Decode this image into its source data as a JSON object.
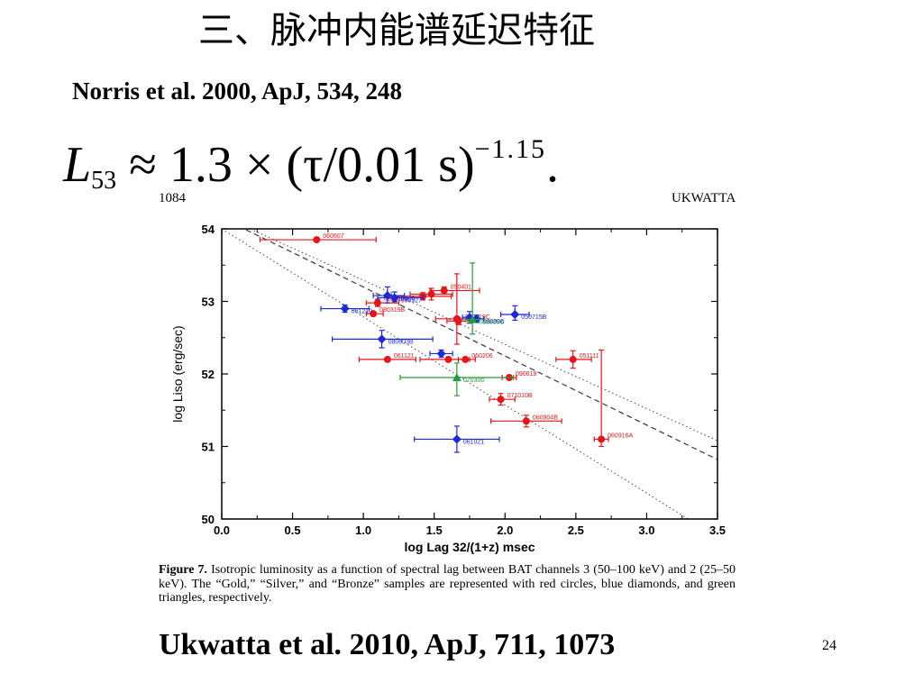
{
  "slide": {
    "title": "三、脉冲内能谱延迟特征",
    "reference_top": "Norris et al. 2000, ApJ, 534, 248",
    "formula": {
      "lhs": "L",
      "lhs_sub": "53",
      "rhs": "≈ 1.3 × (τ/0.01  s)",
      "exponent": "−1.15",
      "end": "."
    },
    "journal_page": "1084",
    "journal_author": "UKWATTA",
    "caption": {
      "label": "Figure 7.",
      "text": "Isotropic luminosity as a function of spectral lag between BAT channels 3 (50–100 keV) and 2 (25–50 keV). The “Gold,” “Silver,” and “Bronze” samples are represented with red circles, blue diamonds, and green triangles, respectively."
    },
    "reference_bottom": "Ukwatta et al. 2010, ApJ, 711, 1073",
    "page_number": "24"
  },
  "colors": {
    "gold": "#e8141a",
    "silver": "#1a2ad6",
    "bronze": "#2a9a3a",
    "axis": "#000000",
    "fit": "#444444"
  },
  "chart_data": {
    "type": "scatter",
    "xlabel": "log Lag 32/(1+z)  msec",
    "ylabel": "log Liso (erg/sec)",
    "xlim": [
      0.0,
      3.5
    ],
    "ylim": [
      50,
      54
    ],
    "xticks": [
      "0.0",
      "0.5",
      "1.0",
      "1.5",
      "2.0",
      "2.5",
      "3.0",
      "3.5"
    ],
    "yticks": [
      "50",
      "51",
      "52",
      "53",
      "54"
    ],
    "grid": false,
    "lines": [
      {
        "style": "dashed",
        "x": [
          0.0,
          3.5
        ],
        "y": [
          54.15,
          50.82
        ]
      },
      {
        "style": "dotted",
        "x": [
          0.0,
          3.5
        ],
        "y": [
          54.0,
          49.75
        ]
      },
      {
        "style": "dotted",
        "x": [
          0.2,
          3.5
        ],
        "y": [
          54.0,
          51.08
        ]
      }
    ],
    "series": [
      {
        "sample": "gold",
        "marker": "circle",
        "points": [
          {
            "label": "060607",
            "x": 0.67,
            "y": 53.85,
            "xerr": [
              0.4,
              0.42
            ],
            "yerr": [
              0,
              0
            ]
          },
          {
            "label": "080319B",
            "x": 1.1,
            "y": 52.98,
            "xerr": [
              0.08,
              0.15
            ],
            "yerr": [
              0.05,
              0.05
            ]
          },
          {
            "label": "080319B",
            "x": 1.07,
            "y": 52.83,
            "xerr": [
              0.05,
              0.07
            ],
            "yerr": [
              0.03,
              0.03
            ]
          },
          {
            "label": "",
            "x": 1.42,
            "y": 53.07,
            "xerr": [
              0.22,
              0.2
            ],
            "yerr": [
              0.05,
              0.05
            ]
          },
          {
            "label": "",
            "x": 1.48,
            "y": 53.1,
            "xerr": [
              0.15,
              0.15
            ],
            "yerr": [
              0.08,
              0.08
            ]
          },
          {
            "label": "050401",
            "x": 1.57,
            "y": 53.15,
            "xerr": [
              0.1,
              0.25
            ],
            "yerr": [
              0.05,
              0.05
            ]
          },
          {
            "label": "",
            "x": 1.66,
            "y": 52.76,
            "xerr": [
              0.15,
              0.15
            ],
            "yerr": [
              0.35,
              0.62
            ]
          },
          {
            "label": "080319C",
            "x": 1.67,
            "y": 52.73,
            "xerr": [
              0.08,
              0.08
            ],
            "yerr": [
              0.05,
              0.05
            ]
          },
          {
            "label": "061121",
            "x": 1.17,
            "y": 52.2,
            "xerr": [
              0.2,
              0.2
            ],
            "yerr": [
              0,
              0
            ]
          },
          {
            "label": "",
            "x": 1.6,
            "y": 52.2,
            "xerr": [
              0.2,
              0.15
            ],
            "yerr": [
              0.03,
              0.03
            ]
          },
          {
            "label": "060206",
            "x": 1.72,
            "y": 52.2,
            "xerr": [
              0.05,
              0.07
            ],
            "yerr": [
              0,
              0
            ]
          },
          {
            "label": "090618",
            "x": 2.03,
            "y": 51.95,
            "xerr": [
              0.05,
              0.05
            ],
            "yerr": [
              0.03,
              0.03
            ]
          },
          {
            "label": "071010B",
            "x": 1.97,
            "y": 51.65,
            "xerr": [
              0.08,
              0.1
            ],
            "yerr": [
              0.08,
              0.08
            ]
          },
          {
            "label": "060904B",
            "x": 2.15,
            "y": 51.35,
            "xerr": [
              0.25,
              0.25
            ],
            "yerr": [
              0.08,
              0.08
            ]
          },
          {
            "label": "051111",
            "x": 2.48,
            "y": 52.2,
            "xerr": [
              0.12,
              0.13
            ],
            "yerr": [
              0.12,
              0.12
            ]
          },
          {
            "label": "060916A",
            "x": 2.68,
            "y": 51.1,
            "xerr": [
              0.05,
              0.05
            ],
            "yerr": [
              0.1,
              1.23
            ]
          }
        ]
      },
      {
        "sample": "silver",
        "marker": "diamond",
        "points": [
          {
            "label": "060926",
            "x": 1.17,
            "y": 53.08,
            "xerr": [
              0.1,
              0.12
            ],
            "yerr": [
              0.1,
              0.12
            ]
          },
          {
            "label": "080927",
            "x": 1.22,
            "y": 53.05,
            "xerr": [
              0.12,
              0.2
            ],
            "yerr": [
              0.05,
              0.08
            ]
          },
          {
            "label": "061210",
            "x": 0.87,
            "y": 52.9,
            "xerr": [
              0.17,
              0.17
            ],
            "yerr": [
              0.05,
              0.05
            ]
          },
          {
            "label": "080603B",
            "x": 1.13,
            "y": 52.48,
            "xerr": [
              0.35,
              0.36
            ],
            "yerr": [
              0.12,
              0.12
            ]
          },
          {
            "label": "",
            "x": 1.55,
            "y": 52.28,
            "xerr": [
              0.08,
              0.08
            ],
            "yerr": [
              0.05,
              0.05
            ]
          },
          {
            "label": "",
            "x": 1.75,
            "y": 52.78,
            "xerr": [
              0.05,
              0.05
            ],
            "yerr": [
              0.08,
              0.08
            ]
          },
          {
            "label": "080906",
            "x": 1.8,
            "y": 52.76,
            "xerr": [
              0.05,
              0.05
            ],
            "yerr": [
              0.05,
              0.05
            ]
          },
          {
            "label": "050715B",
            "x": 2.07,
            "y": 52.82,
            "xerr": [
              0.1,
              0.1
            ],
            "yerr": [
              0.08,
              0.12
            ]
          },
          {
            "label": "061021",
            "x": 1.66,
            "y": 51.1,
            "xerr": [
              0.3,
              0.3
            ],
            "yerr": [
              0.18,
              0.18
            ]
          }
        ]
      },
      {
        "sample": "bronze",
        "marker": "triangle",
        "points": [
          {
            "label": "080605C",
            "x": 1.77,
            "y": 52.75,
            "xerr": [
              0.05,
              0.05
            ],
            "yerr": [
              0.2,
              0.78
            ]
          },
          {
            "label": "070306",
            "x": 1.66,
            "y": 51.95,
            "xerr": [
              0.4,
              0.4
            ],
            "yerr": [
              0.25,
              0.2
            ]
          }
        ]
      }
    ]
  }
}
